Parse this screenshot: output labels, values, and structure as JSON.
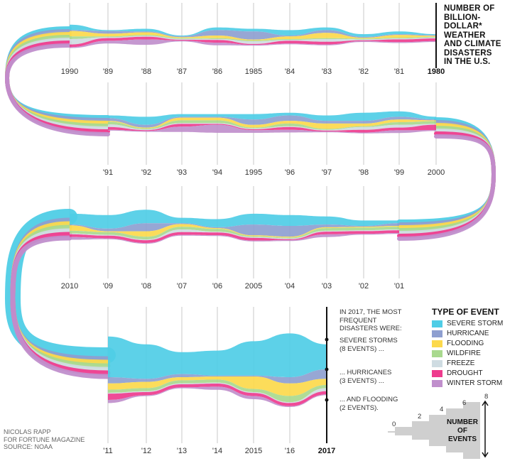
{
  "title": "NUMBER OF BILLION-DOLLAR* WEATHER AND CLIMATE DISASTERS IN THE U.S.",
  "title_lines": [
    "NUMBER OF",
    "BILLION-",
    "DOLLAR*",
    "WEATHER",
    "AND CLIMATE",
    "DISASTERS",
    "IN THE U.S."
  ],
  "legend_title": "TYPE OF EVENT",
  "legend": [
    {
      "name": "SEVERE STORM",
      "color": "#4fcde6"
    },
    {
      "name": "HURRICANE",
      "color": "#8e9fd0"
    },
    {
      "name": "FLOODING",
      "color": "#fcd94c"
    },
    {
      "name": "WILDFIRE",
      "color": "#a9d98e"
    },
    {
      "name": "FREEZE",
      "color": "#cfdce2"
    },
    {
      "name": "DROUGHT",
      "color": "#ee3c8e"
    },
    {
      "name": "WINTER STORM",
      "color": "#c08fcc"
    }
  ],
  "annotation": {
    "intro": [
      "IN 2017, THE MOST",
      "FREQUENT",
      "DISASTERS WERE:"
    ],
    "storms": [
      "SEVERE STORMS",
      "(8 EVENTS) ..."
    ],
    "hurricanes": [
      "... HURRICANES",
      "(3 EVENTS) ..."
    ],
    "flooding": [
      "... AND FLOODING",
      "(2 EVENTS)."
    ]
  },
  "credit": [
    "NICOLAS RAPP",
    "FOR FORTUNE MAGAZINE",
    "SOURCE: NOAA"
  ],
  "scale": {
    "title": [
      "NUMBER",
      "OF",
      "EVENTS"
    ],
    "ticks": [
      "0",
      "2",
      "4",
      "6",
      "8"
    ]
  },
  "chart_data": {
    "type": "area",
    "description_of_layout": "serpentine stream graph, years run right-to-left on row 1, left-to-right on row 2, right-to-left on row 3, left-to-right on row 4",
    "row_labels": [
      [
        "1990",
        "'89",
        "'88",
        "'87",
        "'86",
        "1985",
        "'84",
        "'83",
        "'82",
        "'81",
        "1980"
      ],
      [
        "'91",
        "'92",
        "'93",
        "'94",
        "1995",
        "'96",
        "'97",
        "'98",
        "'99",
        "2000"
      ],
      [
        "2010",
        "'09",
        "'08",
        "'07",
        "'06",
        "2005",
        "'04",
        "'03",
        "'02",
        "'01"
      ],
      [
        "'11",
        "'12",
        "'13",
        "'14",
        "2015",
        "'16",
        "2017"
      ]
    ],
    "bold_labels": [
      "1980",
      "2017"
    ],
    "x": [
      1980,
      1981,
      1982,
      1983,
      1984,
      1985,
      1986,
      1987,
      1988,
      1989,
      1990,
      1991,
      1992,
      1993,
      1994,
      1995,
      1996,
      1997,
      1998,
      1999,
      2000,
      2001,
      2002,
      2003,
      2004,
      2005,
      2006,
      2007,
      2008,
      2009,
      2010,
      2011,
      2012,
      2013,
      2014,
      2015,
      2016,
      2017
    ],
    "series": [
      {
        "name": "SEVERE STORM",
        "values": [
          0,
          1,
          1,
          1,
          2,
          1,
          1,
          0,
          1,
          0,
          2,
          1,
          3,
          1,
          1,
          2,
          1,
          2,
          3,
          2,
          1,
          1,
          2,
          3,
          4,
          4,
          3,
          2,
          5,
          5,
          4,
          13,
          11,
          7,
          8,
          11,
          14,
          8
        ]
      },
      {
        "name": "HURRICANE",
        "values": [
          0,
          0,
          0,
          1,
          0,
          3,
          2,
          0,
          0,
          1,
          0,
          1,
          1,
          0,
          0,
          2,
          2,
          1,
          1,
          1,
          0,
          1,
          0,
          1,
          4,
          4,
          0,
          0,
          3,
          1,
          0,
          2,
          1,
          1,
          0,
          0,
          2,
          3
        ]
      },
      {
        "name": "FLOODING",
        "values": [
          0,
          1,
          0,
          2,
          1,
          0,
          1,
          0,
          1,
          1,
          2,
          0,
          0,
          1,
          1,
          1,
          1,
          2,
          1,
          1,
          0,
          0,
          0,
          0,
          0,
          0,
          0,
          1,
          2,
          0,
          2,
          2,
          2,
          1,
          1,
          4,
          4,
          2
        ]
      },
      {
        "name": "WILDFIRE",
        "values": [
          0,
          0,
          0,
          0,
          0,
          0,
          0,
          0,
          0,
          0,
          1,
          1,
          0,
          1,
          1,
          0,
          1,
          0,
          0,
          1,
          1,
          1,
          1,
          1,
          0,
          0,
          1,
          1,
          1,
          1,
          1,
          1,
          1,
          1,
          1,
          1,
          2,
          1
        ]
      },
      {
        "name": "FREEZE",
        "values": [
          0,
          0,
          0,
          1,
          0,
          1,
          0,
          0,
          0,
          0,
          2,
          1,
          0,
          0,
          0,
          0,
          0,
          0,
          1,
          1,
          0,
          0,
          0,
          0,
          0,
          0,
          0,
          1,
          0,
          0,
          0,
          0,
          0,
          0,
          0,
          0,
          0,
          1
        ]
      },
      {
        "name": "DROUGHT",
        "values": [
          1,
          1,
          0,
          1,
          1,
          0,
          1,
          0,
          1,
          1,
          1,
          1,
          0,
          1,
          0,
          0,
          1,
          0,
          1,
          1,
          2,
          1,
          1,
          1,
          0,
          1,
          1,
          1,
          1,
          1,
          1,
          2,
          1,
          1,
          1,
          1,
          1,
          1
        ]
      },
      {
        "name": "WINTER STORM",
        "values": [
          0,
          0,
          0,
          0,
          0,
          0,
          1,
          0,
          2,
          1,
          0,
          0,
          0,
          2,
          3,
          1,
          1,
          0,
          0,
          1,
          0,
          0,
          0,
          1,
          0,
          0,
          0,
          0,
          0,
          0,
          1,
          1,
          0,
          0,
          1,
          1,
          0,
          0
        ]
      }
    ]
  }
}
